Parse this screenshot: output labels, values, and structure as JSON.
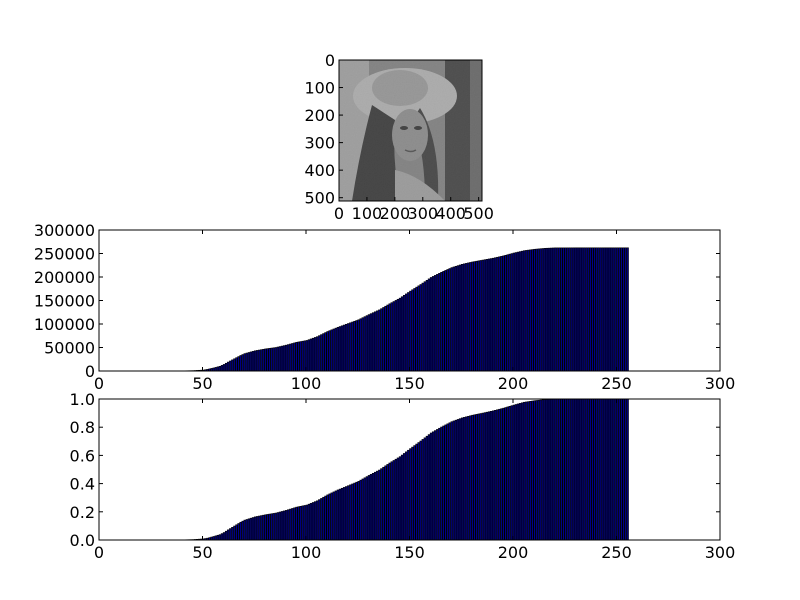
{
  "figure": {
    "background": "#ffffff",
    "bar_face_color": "#00008b",
    "bar_edge_color": "#000000"
  },
  "chart_data": [
    {
      "type": "image",
      "image_description": "grayscale photograph, 512x512 pixels (woman wearing a wide-brimmed hat)",
      "colormap": "gray",
      "xlim": [
        0,
        512
      ],
      "ylim": [
        512,
        0
      ],
      "x_ticks": [
        "0",
        "100",
        "200",
        "300",
        "400",
        "500"
      ],
      "y_ticks": [
        "0",
        "100",
        "200",
        "300",
        "400",
        "500"
      ]
    },
    {
      "type": "bar",
      "xlabel": "",
      "ylabel": "",
      "xlim": [
        0,
        300
      ],
      "ylim": [
        0,
        300000
      ],
      "grid": false,
      "x_ticks": [
        "0",
        "50",
        "100",
        "150",
        "200",
        "250",
        "300"
      ],
      "y_ticks": [
        "0",
        "50000",
        "100000",
        "150000",
        "200000",
        "250000",
        "300000"
      ],
      "x": [
        0,
        5,
        10,
        15,
        20,
        25,
        30,
        35,
        40,
        45,
        50,
        52,
        55,
        58,
        60,
        62,
        65,
        68,
        70,
        75,
        80,
        85,
        90,
        95,
        100,
        105,
        110,
        115,
        120,
        125,
        130,
        135,
        140,
        145,
        150,
        155,
        160,
        165,
        170,
        175,
        180,
        185,
        190,
        195,
        200,
        205,
        210,
        215,
        220,
        225,
        230,
        235,
        240,
        245,
        250,
        255
      ],
      "values": [
        0,
        0,
        0,
        0,
        0,
        0,
        0,
        0,
        300,
        800,
        2000,
        3500,
        6500,
        10000,
        14000,
        19000,
        26000,
        33000,
        37000,
        43000,
        47000,
        50000,
        55000,
        61000,
        65000,
        73000,
        84000,
        93000,
        101000,
        109000,
        120000,
        130000,
        143000,
        155000,
        170000,
        184000,
        199000,
        210000,
        220000,
        227000,
        232000,
        236000,
        240000,
        245000,
        251000,
        256000,
        259000,
        261000,
        262000,
        262000,
        262144,
        262144,
        262144,
        262144,
        262144,
        262144
      ]
    },
    {
      "type": "bar",
      "xlabel": "",
      "ylabel": "",
      "xlim": [
        0,
        300
      ],
      "ylim": [
        0,
        1.0
      ],
      "grid": false,
      "x_ticks": [
        "0",
        "50",
        "100",
        "150",
        "200",
        "250",
        "300"
      ],
      "y_ticks": [
        "0.0",
        "0.2",
        "0.4",
        "0.6",
        "0.8",
        "1.0"
      ],
      "x": [
        0,
        5,
        10,
        15,
        20,
        25,
        30,
        35,
        40,
        45,
        50,
        52,
        55,
        58,
        60,
        62,
        65,
        68,
        70,
        75,
        80,
        85,
        90,
        95,
        100,
        105,
        110,
        115,
        120,
        125,
        130,
        135,
        140,
        145,
        150,
        155,
        160,
        165,
        170,
        175,
        180,
        185,
        190,
        195,
        200,
        205,
        210,
        215,
        220,
        225,
        230,
        235,
        240,
        245,
        250,
        255
      ],
      "values": [
        0,
        0,
        0,
        0,
        0,
        0,
        0,
        0,
        0.001,
        0.003,
        0.008,
        0.013,
        0.025,
        0.038,
        0.053,
        0.072,
        0.099,
        0.126,
        0.141,
        0.164,
        0.179,
        0.191,
        0.21,
        0.233,
        0.248,
        0.278,
        0.32,
        0.355,
        0.385,
        0.416,
        0.458,
        0.496,
        0.546,
        0.591,
        0.648,
        0.702,
        0.759,
        0.801,
        0.839,
        0.866,
        0.885,
        0.9,
        0.916,
        0.935,
        0.957,
        0.977,
        0.988,
        0.996,
        0.999,
        0.999,
        1.0,
        1.0,
        1.0,
        1.0,
        1.0,
        1.0
      ]
    }
  ]
}
